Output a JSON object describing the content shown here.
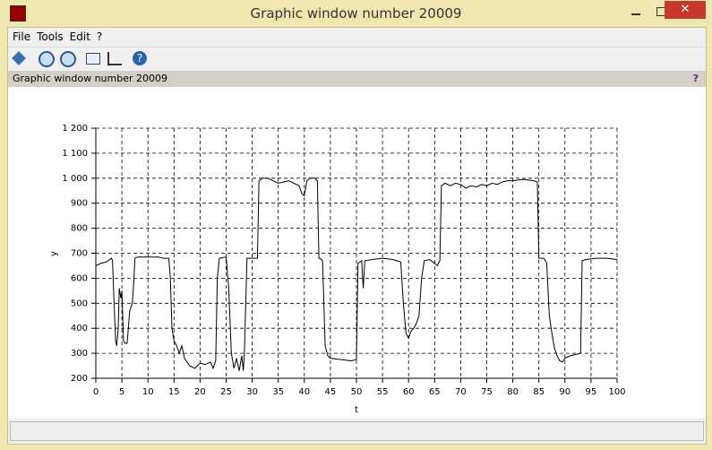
{
  "window": {
    "title": "Graphic window number 20009"
  },
  "menu": [
    "File",
    "Tools",
    "Edit",
    "?"
  ],
  "infobar": {
    "text": "Graphic window number 20009",
    "help": "?"
  },
  "chart_data": {
    "type": "line",
    "xlabel": "t",
    "ylabel": "y",
    "color": "#000000",
    "grid": true,
    "xlim": [
      0,
      100
    ],
    "ylim": [
      200,
      1200
    ],
    "xticks": [
      0,
      5,
      10,
      15,
      20,
      25,
      30,
      35,
      40,
      45,
      50,
      55,
      60,
      65,
      70,
      75,
      80,
      85,
      90,
      95,
      100
    ],
    "yticks": [
      200,
      300,
      400,
      500,
      600,
      700,
      800,
      900,
      {
        "value": 1000,
        "label": "1 000"
      },
      {
        "value": 1100,
        "label": "1 100"
      },
      {
        "value": 1200,
        "label": "1 200"
      }
    ],
    "x": [
      0,
      1,
      2,
      3,
      3.2,
      3.5,
      3.8,
      4,
      4.3,
      4.5,
      4.8,
      5,
      5.3,
      5.6,
      6,
      6.5,
      7,
      7.3,
      7.5,
      8,
      10,
      12,
      13,
      14,
      14.3,
      14.6,
      15,
      15.5,
      16,
      16.5,
      17,
      18,
      19,
      20,
      21,
      22,
      22.5,
      23,
      23.3,
      23.7,
      25,
      25.5,
      26,
      26.5,
      27,
      27.5,
      28,
      28.3,
      28.5,
      29,
      30,
      31,
      31.3,
      32,
      33,
      34,
      35,
      36,
      37,
      38,
      39,
      39.5,
      40,
      40.5,
      41,
      42,
      42.5,
      42.8,
      43,
      43.5,
      44,
      44.5,
      45,
      47,
      49,
      50,
      50.3,
      51,
      51.3,
      51.6,
      53,
      55,
      57,
      58.5,
      59,
      59.5,
      60,
      60.5,
      61,
      61.5,
      62,
      62.5,
      63,
      64,
      65,
      65.5,
      66,
      66.3,
      67,
      68,
      69,
      70,
      71,
      72,
      73,
      74,
      75,
      76,
      77,
      78,
      79,
      80,
      82,
      84,
      84.7,
      85,
      86,
      86.5,
      87,
      87.5,
      88,
      88.5,
      89,
      89.5,
      90,
      91,
      92,
      93,
      93.3,
      94,
      96,
      98,
      100
    ],
    "values": [
      650,
      660,
      665,
      680,
      670,
      500,
      350,
      330,
      400,
      560,
      520,
      550,
      350,
      340,
      340,
      470,
      500,
      590,
      680,
      685,
      685,
      685,
      680,
      680,
      600,
      400,
      350,
      330,
      300,
      330,
      280,
      250,
      240,
      260,
      255,
      265,
      240,
      270,
      600,
      680,
      685,
      560,
      300,
      240,
      280,
      230,
      290,
      230,
      300,
      680,
      680,
      680,
      990,
      1000,
      1000,
      990,
      980,
      985,
      990,
      980,
      970,
      940,
      930,
      990,
      1000,
      1000,
      990,
      680,
      680,
      670,
      330,
      290,
      280,
      275,
      270,
      275,
      660,
      670,
      560,
      670,
      675,
      680,
      675,
      665,
      500,
      380,
      360,
      390,
      400,
      420,
      450,
      600,
      670,
      675,
      660,
      650,
      670,
      970,
      980,
      970,
      980,
      975,
      960,
      970,
      965,
      975,
      970,
      980,
      975,
      985,
      990,
      990,
      995,
      990,
      985,
      680,
      680,
      660,
      450,
      380,
      320,
      290,
      270,
      265,
      280,
      290,
      295,
      300,
      670,
      675,
      680,
      680,
      675
    ]
  }
}
